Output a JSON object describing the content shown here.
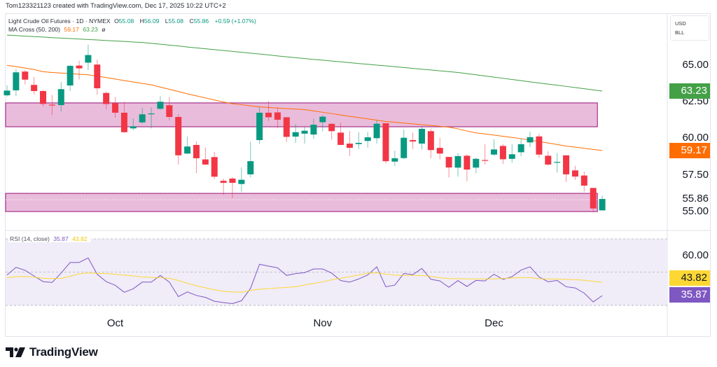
{
  "credit": "Tom123321123 created with TradingView.com, Dec 17, 2025 10:22 UTC+2",
  "legend": {
    "symbol": "Light Crude Oil Futures · 1D · NYMEX",
    "open_label": "O",
    "open": "55.08",
    "high_label": "H",
    "high": "56.09",
    "low_label": "L",
    "low": "55.08",
    "close_label": "C",
    "close": "55.86",
    "change": "+0.59 (+1.07%)",
    "ma_title": "MA Cross (50, 200)",
    "ma_fast": "59.17",
    "ma_slow": "63.23",
    "ma_symbol": "ø",
    "rsi_title": "RSI (14, close)",
    "rsi_value": "35.87",
    "rsi_ma_value": "43.82"
  },
  "unit_box": {
    "currency": "USD",
    "unit": "BLL"
  },
  "price_axis": {
    "ticks": [
      "65.00",
      "62.50",
      "60.00",
      "57.50",
      "55.00"
    ],
    "last_price": "55.86",
    "badges": {
      "ma_slow": "63.23",
      "ma_fast": "59.17"
    }
  },
  "rsi_axis": {
    "ticks": [
      "60.00"
    ],
    "badges": {
      "rsi_ma": "43.82",
      "rsi": "35.87"
    }
  },
  "x_axis": {
    "labels": [
      "Oct",
      "Nov",
      "Dec"
    ]
  },
  "brand": "TradingView",
  "colors": {
    "up": "#089981",
    "down": "#f23645",
    "ma_fast": "#ff6d00",
    "ma_slow": "#43a047",
    "rsi": "#7e57c2",
    "rsi_ma": "#fdd835",
    "zone_fill": "#e9bcdb",
    "zone_border": "#a8318a",
    "rsi_band": "#f0ecf8"
  },
  "chart_data": [
    {
      "type": "candlestick",
      "title": "Light Crude Oil Futures · 1D · NYMEX",
      "ylim": [
        53.71,
        68.54
      ],
      "yticks": [
        55,
        57.5,
        60,
        62.5,
        65
      ],
      "grid": false,
      "x_tick_labels": [
        {
          "label": "Oct",
          "bar": 12
        },
        {
          "label": "Nov",
          "bar": 35
        },
        {
          "label": "Dec",
          "bar": 54
        }
      ],
      "ohlc": [
        [
          62.94,
          63.63,
          62.85,
          63.26
        ],
        [
          63.28,
          64.71,
          62.88,
          64.51
        ],
        [
          64.56,
          64.67,
          63.68,
          64.01
        ],
        [
          63.65,
          64.19,
          63.0,
          63.23
        ],
        [
          63.23,
          63.31,
          62.16,
          62.35
        ],
        [
          62.3,
          62.96,
          61.59,
          62.25
        ],
        [
          62.27,
          63.84,
          61.83,
          63.36
        ],
        [
          63.61,
          65.01,
          63.23,
          64.95
        ],
        [
          64.97,
          65.3,
          64.03,
          64.78
        ],
        [
          65.17,
          66.39,
          64.67,
          65.69
        ],
        [
          65.04,
          65.37,
          62.98,
          63.42
        ],
        [
          63.1,
          63.2,
          62.0,
          62.34
        ],
        [
          62.4,
          62.83,
          61.4,
          61.75
        ],
        [
          61.75,
          62.5,
          60.39,
          60.42
        ],
        [
          60.68,
          61.35,
          60.55,
          60.82
        ],
        [
          61.09,
          62.08,
          61.0,
          61.64
        ],
        [
          61.66,
          62.11,
          60.68,
          61.7
        ],
        [
          62.02,
          62.88,
          61.95,
          62.5
        ],
        [
          62.26,
          62.83,
          61.23,
          61.46
        ],
        [
          61.46,
          61.64,
          58.21,
          58.84
        ],
        [
          58.96,
          60.12,
          58.92,
          59.44
        ],
        [
          59.55,
          59.8,
          57.62,
          58.64
        ],
        [
          58.56,
          59.37,
          58.18,
          58.21
        ],
        [
          58.72,
          59.08,
          57.22,
          57.38
        ],
        [
          57.1,
          57.25,
          56.13,
          56.96
        ],
        [
          57.25,
          57.36,
          55.92,
          56.96
        ],
        [
          56.88,
          58.01,
          56.33,
          57.17
        ],
        [
          57.54,
          59.77,
          57.33,
          58.44
        ],
        [
          59.88,
          62.14,
          59.61,
          61.75
        ],
        [
          61.75,
          62.55,
          61.18,
          61.44
        ],
        [
          61.77,
          62.11,
          60.68,
          61.27
        ],
        [
          61.44,
          61.44,
          59.75,
          60.1
        ],
        [
          60.12,
          60.96,
          59.69,
          60.42
        ],
        [
          60.32,
          60.76,
          59.64,
          60.52
        ],
        [
          60.26,
          61.34,
          59.96,
          60.93
        ],
        [
          61.1,
          61.59,
          60.49,
          61.48
        ],
        [
          60.99,
          61.03,
          59.91,
          60.49
        ],
        [
          60.39,
          61.08,
          59.53,
          59.55
        ],
        [
          59.64,
          60.49,
          58.79,
          59.35
        ],
        [
          59.61,
          60.42,
          59.27,
          59.69
        ],
        [
          59.82,
          60.42,
          59.37,
          60.07
        ],
        [
          60.01,
          61.23,
          59.64,
          61.0
        ],
        [
          61.03,
          61.03,
          58.29,
          58.44
        ],
        [
          58.41,
          59.16,
          58.1,
          58.64
        ],
        [
          58.65,
          60.6,
          58.57,
          60.04
        ],
        [
          59.88,
          60.39,
          59.27,
          59.78
        ],
        [
          59.64,
          60.76,
          59.24,
          60.65
        ],
        [
          60.49,
          60.68,
          58.64,
          59.2
        ],
        [
          59.35,
          60.04,
          58.56,
          58.96
        ],
        [
          58.73,
          58.73,
          57.33,
          58.01
        ],
        [
          58.0,
          59.0,
          57.38,
          58.79
        ],
        [
          58.81,
          58.92,
          57.06,
          57.87
        ],
        [
          58.0,
          58.68,
          57.62,
          58.6
        ],
        [
          58.52,
          59.59,
          58.21,
          58.48
        ],
        [
          58.89,
          59.93,
          58.81,
          59.24
        ],
        [
          59.48,
          59.6,
          58.25,
          58.57
        ],
        [
          58.6,
          59.59,
          58.33,
          58.91
        ],
        [
          59.05,
          59.99,
          58.77,
          59.6
        ],
        [
          59.72,
          60.46,
          59.4,
          60.08
        ],
        [
          60.13,
          60.3,
          58.65,
          58.89
        ],
        [
          58.81,
          59.11,
          58.13,
          58.21
        ],
        [
          58.35,
          59.0,
          57.66,
          58.39
        ],
        [
          58.84,
          58.84,
          57.01,
          57.54
        ],
        [
          57.81,
          58.13,
          57.17,
          57.39
        ],
        [
          57.46,
          57.73,
          56.37,
          56.77
        ],
        [
          56.61,
          56.61,
          54.94,
          55.21
        ],
        [
          55.08,
          56.09,
          55.08,
          55.86
        ]
      ],
      "series": [
        {
          "name": "MA 50",
          "color": "#ff6d00",
          "values": [
            64.99,
            64.9,
            64.8,
            64.7,
            64.55,
            64.5,
            64.46,
            64.42,
            64.38,
            64.34,
            64.25,
            64.15,
            64.05,
            63.95,
            63.85,
            63.75,
            63.66,
            63.5,
            63.35,
            63.2,
            63.04,
            62.9,
            62.76,
            62.62,
            62.48,
            62.36,
            62.3,
            62.22,
            62.15,
            62.11,
            62.07,
            62.03,
            62.0,
            61.96,
            61.87,
            61.78,
            61.69,
            61.6,
            61.5,
            61.42,
            61.33,
            61.24,
            61.15,
            61.1,
            61.04,
            60.99,
            60.93,
            60.88,
            60.82,
            60.76,
            60.65,
            60.5,
            60.37,
            60.3,
            60.22,
            60.14,
            60.06,
            59.98,
            59.88,
            59.78,
            59.68,
            59.58,
            59.47,
            59.4,
            59.32,
            59.24,
            59.17
          ]
        },
        {
          "name": "MA 200",
          "color": "#43a047",
          "values": [
            67.05,
            67.02,
            66.98,
            66.95,
            66.92,
            66.88,
            66.85,
            66.82,
            66.78,
            66.75,
            66.72,
            66.68,
            66.65,
            66.62,
            66.58,
            66.55,
            66.49,
            66.43,
            66.37,
            66.31,
            66.24,
            66.18,
            66.12,
            66.06,
            66.0,
            65.94,
            65.88,
            65.82,
            65.76,
            65.7,
            65.63,
            65.57,
            65.51,
            65.45,
            65.39,
            65.34,
            65.28,
            65.23,
            65.17,
            65.11,
            65.06,
            65.0,
            64.95,
            64.89,
            64.84,
            64.78,
            64.72,
            64.67,
            64.61,
            64.56,
            64.5,
            64.42,
            64.34,
            64.26,
            64.18,
            64.1,
            64.02,
            63.94,
            63.86,
            63.78,
            63.7,
            63.63,
            63.55,
            63.47,
            63.39,
            63.31,
            63.23
          ]
        }
      ],
      "zones": [
        {
          "from": 60.79,
          "to": 62.42
        },
        {
          "from": 55.0,
          "to": 56.24,
          "mid": 55.81
        }
      ]
    },
    {
      "type": "line",
      "title": "RSI (14, close)",
      "ylim": [
        25.4,
        75.05
      ],
      "yticks": [
        60
      ],
      "bands": [
        30,
        50,
        70
      ],
      "series": [
        {
          "name": "RSI",
          "color": "#7e57c2",
          "values": [
            48.3,
            52.9,
            51.1,
            47.7,
            44.3,
            43.8,
            49.4,
            55.8,
            55.8,
            58.5,
            48.7,
            44.3,
            42.1,
            37.9,
            40.0,
            44.0,
            44.0,
            48.0,
            44.0,
            35.3,
            38.1,
            36.0,
            34.8,
            32.5,
            31.7,
            31.1,
            32.8,
            40.2,
            54.7,
            53.6,
            52.6,
            48.0,
            49.1,
            49.7,
            51.9,
            51.9,
            49.4,
            44.9,
            44.0,
            45.9,
            48.3,
            53.2,
            41.2,
            42.2,
            49.2,
            48.5,
            52.2,
            45.7,
            44.7,
            40.9,
            44.9,
            41.4,
            45.0,
            44.7,
            48.7,
            45.6,
            47.3,
            51.2,
            53.2,
            47.1,
            44.2,
            45.0,
            41.2,
            40.5,
            37.4,
            32.1,
            35.87
          ]
        },
        {
          "name": "RSI MA",
          "color": "#fdd835",
          "values": [
            46.6,
            47.3,
            47.4,
            47.0,
            46.3,
            46.1,
            46.3,
            47.5,
            49.0,
            49.5,
            49.3,
            49.1,
            48.7,
            48.2,
            47.7,
            47.1,
            46.8,
            46.6,
            46.3,
            45.0,
            43.3,
            41.8,
            40.6,
            39.4,
            38.5,
            38.1,
            37.9,
            39.0,
            39.7,
            40.1,
            40.5,
            40.8,
            41.2,
            42.3,
            43.2,
            44.2,
            45.4,
            46.3,
            47.3,
            48.3,
            49.4,
            49.6,
            48.8,
            48.2,
            48.0,
            48.0,
            48.0,
            47.4,
            46.6,
            46.1,
            46.0,
            45.9,
            45.9,
            45.9,
            45.9,
            46.2,
            46.5,
            46.7,
            46.7,
            46.0,
            45.9,
            45.8,
            45.6,
            45.5,
            45.1,
            44.5,
            43.82
          ]
        }
      ]
    }
  ]
}
